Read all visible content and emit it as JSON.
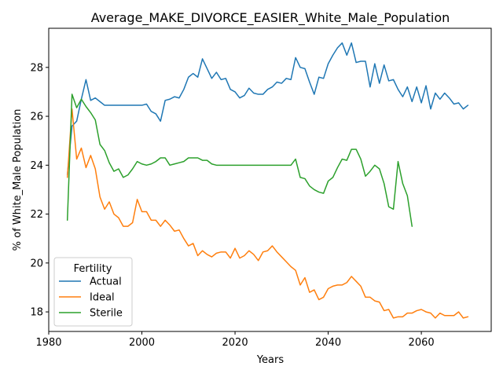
{
  "chart_data": {
    "type": "line",
    "title": "Average_MAKE_DIVORCE_EASIER_White_Male_Population",
    "xlabel": "Years",
    "ylabel": "% of White_Male Population",
    "xlim": [
      1980,
      2075
    ],
    "ylim": [
      17.2,
      29.6
    ],
    "xticks": [
      1980,
      2000,
      2020,
      2040,
      2060
    ],
    "yticks": [
      18,
      20,
      22,
      24,
      26,
      28
    ],
    "grid": false,
    "legend": {
      "title": "Fertility",
      "placement": "lower-left"
    },
    "series": [
      {
        "name": "Actual",
        "color": "#1f77b4",
        "x": [
          1984,
          1985,
          1986,
          1987,
          1988,
          1989,
          1990,
          1991,
          1992,
          1993,
          1994,
          1995,
          1996,
          1997,
          1998,
          1999,
          2000,
          2001,
          2002,
          2003,
          2004,
          2005,
          2006,
          2007,
          2008,
          2009,
          2010,
          2011,
          2012,
          2013,
          2014,
          2015,
          2016,
          2017,
          2018,
          2019,
          2020,
          2021,
          2022,
          2023,
          2024,
          2025,
          2026,
          2027,
          2028,
          2029,
          2030,
          2031,
          2032,
          2033,
          2034,
          2035,
          2036,
          2037,
          2038,
          2039,
          2040,
          2041,
          2042,
          2043,
          2044,
          2045,
          2046,
          2047,
          2048,
          2049,
          2050,
          2051,
          2052,
          2053,
          2054,
          2055,
          2056,
          2057,
          2058,
          2059,
          2060,
          2061,
          2062,
          2063,
          2064,
          2065,
          2066,
          2067,
          2068,
          2069,
          2070
        ],
        "y": [
          23.6,
          25.6,
          25.8,
          26.7,
          27.5,
          26.65,
          26.75,
          26.6,
          26.45,
          26.45,
          26.45,
          26.45,
          26.45,
          26.45,
          26.45,
          26.45,
          26.45,
          26.5,
          26.2,
          26.1,
          25.8,
          26.65,
          26.7,
          26.8,
          26.75,
          27.1,
          27.6,
          27.75,
          27.6,
          28.35,
          27.95,
          27.55,
          27.8,
          27.5,
          27.55,
          27.1,
          27.0,
          26.75,
          26.85,
          27.15,
          26.95,
          26.9,
          26.9,
          27.1,
          27.2,
          27.4,
          27.35,
          27.55,
          27.5,
          28.4,
          28.0,
          27.95,
          27.4,
          26.9,
          27.6,
          27.55,
          28.15,
          28.5,
          28.8,
          29.0,
          28.5,
          29.0,
          28.2,
          28.25,
          28.25,
          27.2,
          28.15,
          27.35,
          28.1,
          27.45,
          27.5,
          27.1,
          26.8,
          27.2,
          26.6,
          27.2,
          26.55,
          27.25,
          26.3,
          26.95,
          26.7,
          26.95,
          26.75,
          26.5,
          26.55,
          26.3,
          26.45
        ]
      },
      {
        "name": "Ideal",
        "color": "#ff7f0e",
        "x": [
          1984,
          1985,
          1986,
          1987,
          1988,
          1989,
          1990,
          1991,
          1992,
          1993,
          1994,
          1995,
          1996,
          1997,
          1998,
          1999,
          2000,
          2001,
          2002,
          2003,
          2004,
          2005,
          2006,
          2007,
          2008,
          2009,
          2010,
          2011,
          2012,
          2013,
          2014,
          2015,
          2016,
          2017,
          2018,
          2019,
          2020,
          2021,
          2022,
          2023,
          2024,
          2025,
          2026,
          2027,
          2028,
          2029,
          2030,
          2031,
          2032,
          2033,
          2034,
          2035,
          2036,
          2037,
          2038,
          2039,
          2040,
          2041,
          2042,
          2043,
          2044,
          2045,
          2046,
          2047,
          2048,
          2049,
          2050,
          2051,
          2052,
          2053,
          2054,
          2055,
          2056,
          2057,
          2058,
          2059,
          2060,
          2061,
          2062,
          2063,
          2064,
          2065,
          2066,
          2067,
          2068,
          2069,
          2070
        ],
        "y": [
          23.5,
          26.3,
          24.25,
          24.7,
          23.9,
          24.4,
          23.85,
          22.7,
          22.2,
          22.5,
          22.0,
          21.85,
          21.5,
          21.5,
          21.65,
          22.6,
          22.1,
          22.1,
          21.75,
          21.75,
          21.5,
          21.75,
          21.55,
          21.3,
          21.35,
          21.0,
          20.7,
          20.8,
          20.3,
          20.5,
          20.35,
          20.25,
          20.4,
          20.45,
          20.45,
          20.2,
          20.6,
          20.2,
          20.3,
          20.5,
          20.35,
          20.1,
          20.45,
          20.5,
          20.7,
          20.45,
          20.25,
          20.05,
          19.85,
          19.7,
          19.1,
          19.4,
          18.8,
          18.9,
          18.5,
          18.6,
          18.95,
          19.05,
          19.1,
          19.1,
          19.2,
          19.45,
          19.25,
          19.05,
          18.6,
          18.6,
          18.45,
          18.4,
          18.05,
          18.1,
          17.75,
          17.8,
          17.8,
          17.95,
          17.95,
          18.05,
          18.1,
          18.0,
          17.95,
          17.75,
          17.95,
          17.85,
          17.85,
          17.85,
          18.0,
          17.75,
          17.8
        ]
      },
      {
        "name": "Sterile",
        "color": "#2ca02c",
        "x": [
          1984,
          1985,
          1986,
          1987,
          1988,
          1989,
          1990,
          1991,
          1992,
          1993,
          1994,
          1995,
          1996,
          1997,
          1998,
          1999,
          2000,
          2001,
          2002,
          2003,
          2004,
          2005,
          2006,
          2007,
          2008,
          2009,
          2010,
          2011,
          2012,
          2013,
          2014,
          2015,
          2016,
          2017,
          2018,
          2019,
          2020,
          2021,
          2022,
          2023,
          2024,
          2025,
          2026,
          2027,
          2028,
          2029,
          2030,
          2031,
          2032,
          2033,
          2034,
          2035,
          2036,
          2037,
          2038,
          2039,
          2040,
          2041,
          2042,
          2043,
          2044,
          2045,
          2046,
          2047,
          2048,
          2049,
          2050,
          2051,
          2052,
          2053,
          2054,
          2055,
          2056,
          2057,
          2058
        ],
        "y": [
          21.75,
          26.9,
          26.35,
          26.7,
          26.4,
          26.15,
          25.85,
          24.85,
          24.6,
          24.1,
          23.75,
          23.85,
          23.5,
          23.6,
          23.85,
          24.15,
          24.05,
          24.0,
          24.05,
          24.15,
          24.3,
          24.3,
          24.0,
          24.05,
          24.1,
          24.15,
          24.3,
          24.3,
          24.3,
          24.2,
          24.2,
          24.05,
          24.0,
          24.0,
          24.0,
          24.0,
          24.0,
          24.0,
          24.0,
          24.0,
          24.0,
          24.0,
          24.0,
          24.0,
          24.0,
          24.0,
          24.0,
          24.0,
          24.0,
          24.25,
          23.5,
          23.45,
          23.15,
          23.0,
          22.9,
          22.85,
          23.35,
          23.5,
          23.9,
          24.25,
          24.2,
          24.65,
          24.65,
          24.25,
          23.55,
          23.75,
          24.0,
          23.85,
          23.25,
          22.3,
          22.2,
          24.15,
          23.25,
          22.75,
          21.5
        ]
      }
    ]
  }
}
